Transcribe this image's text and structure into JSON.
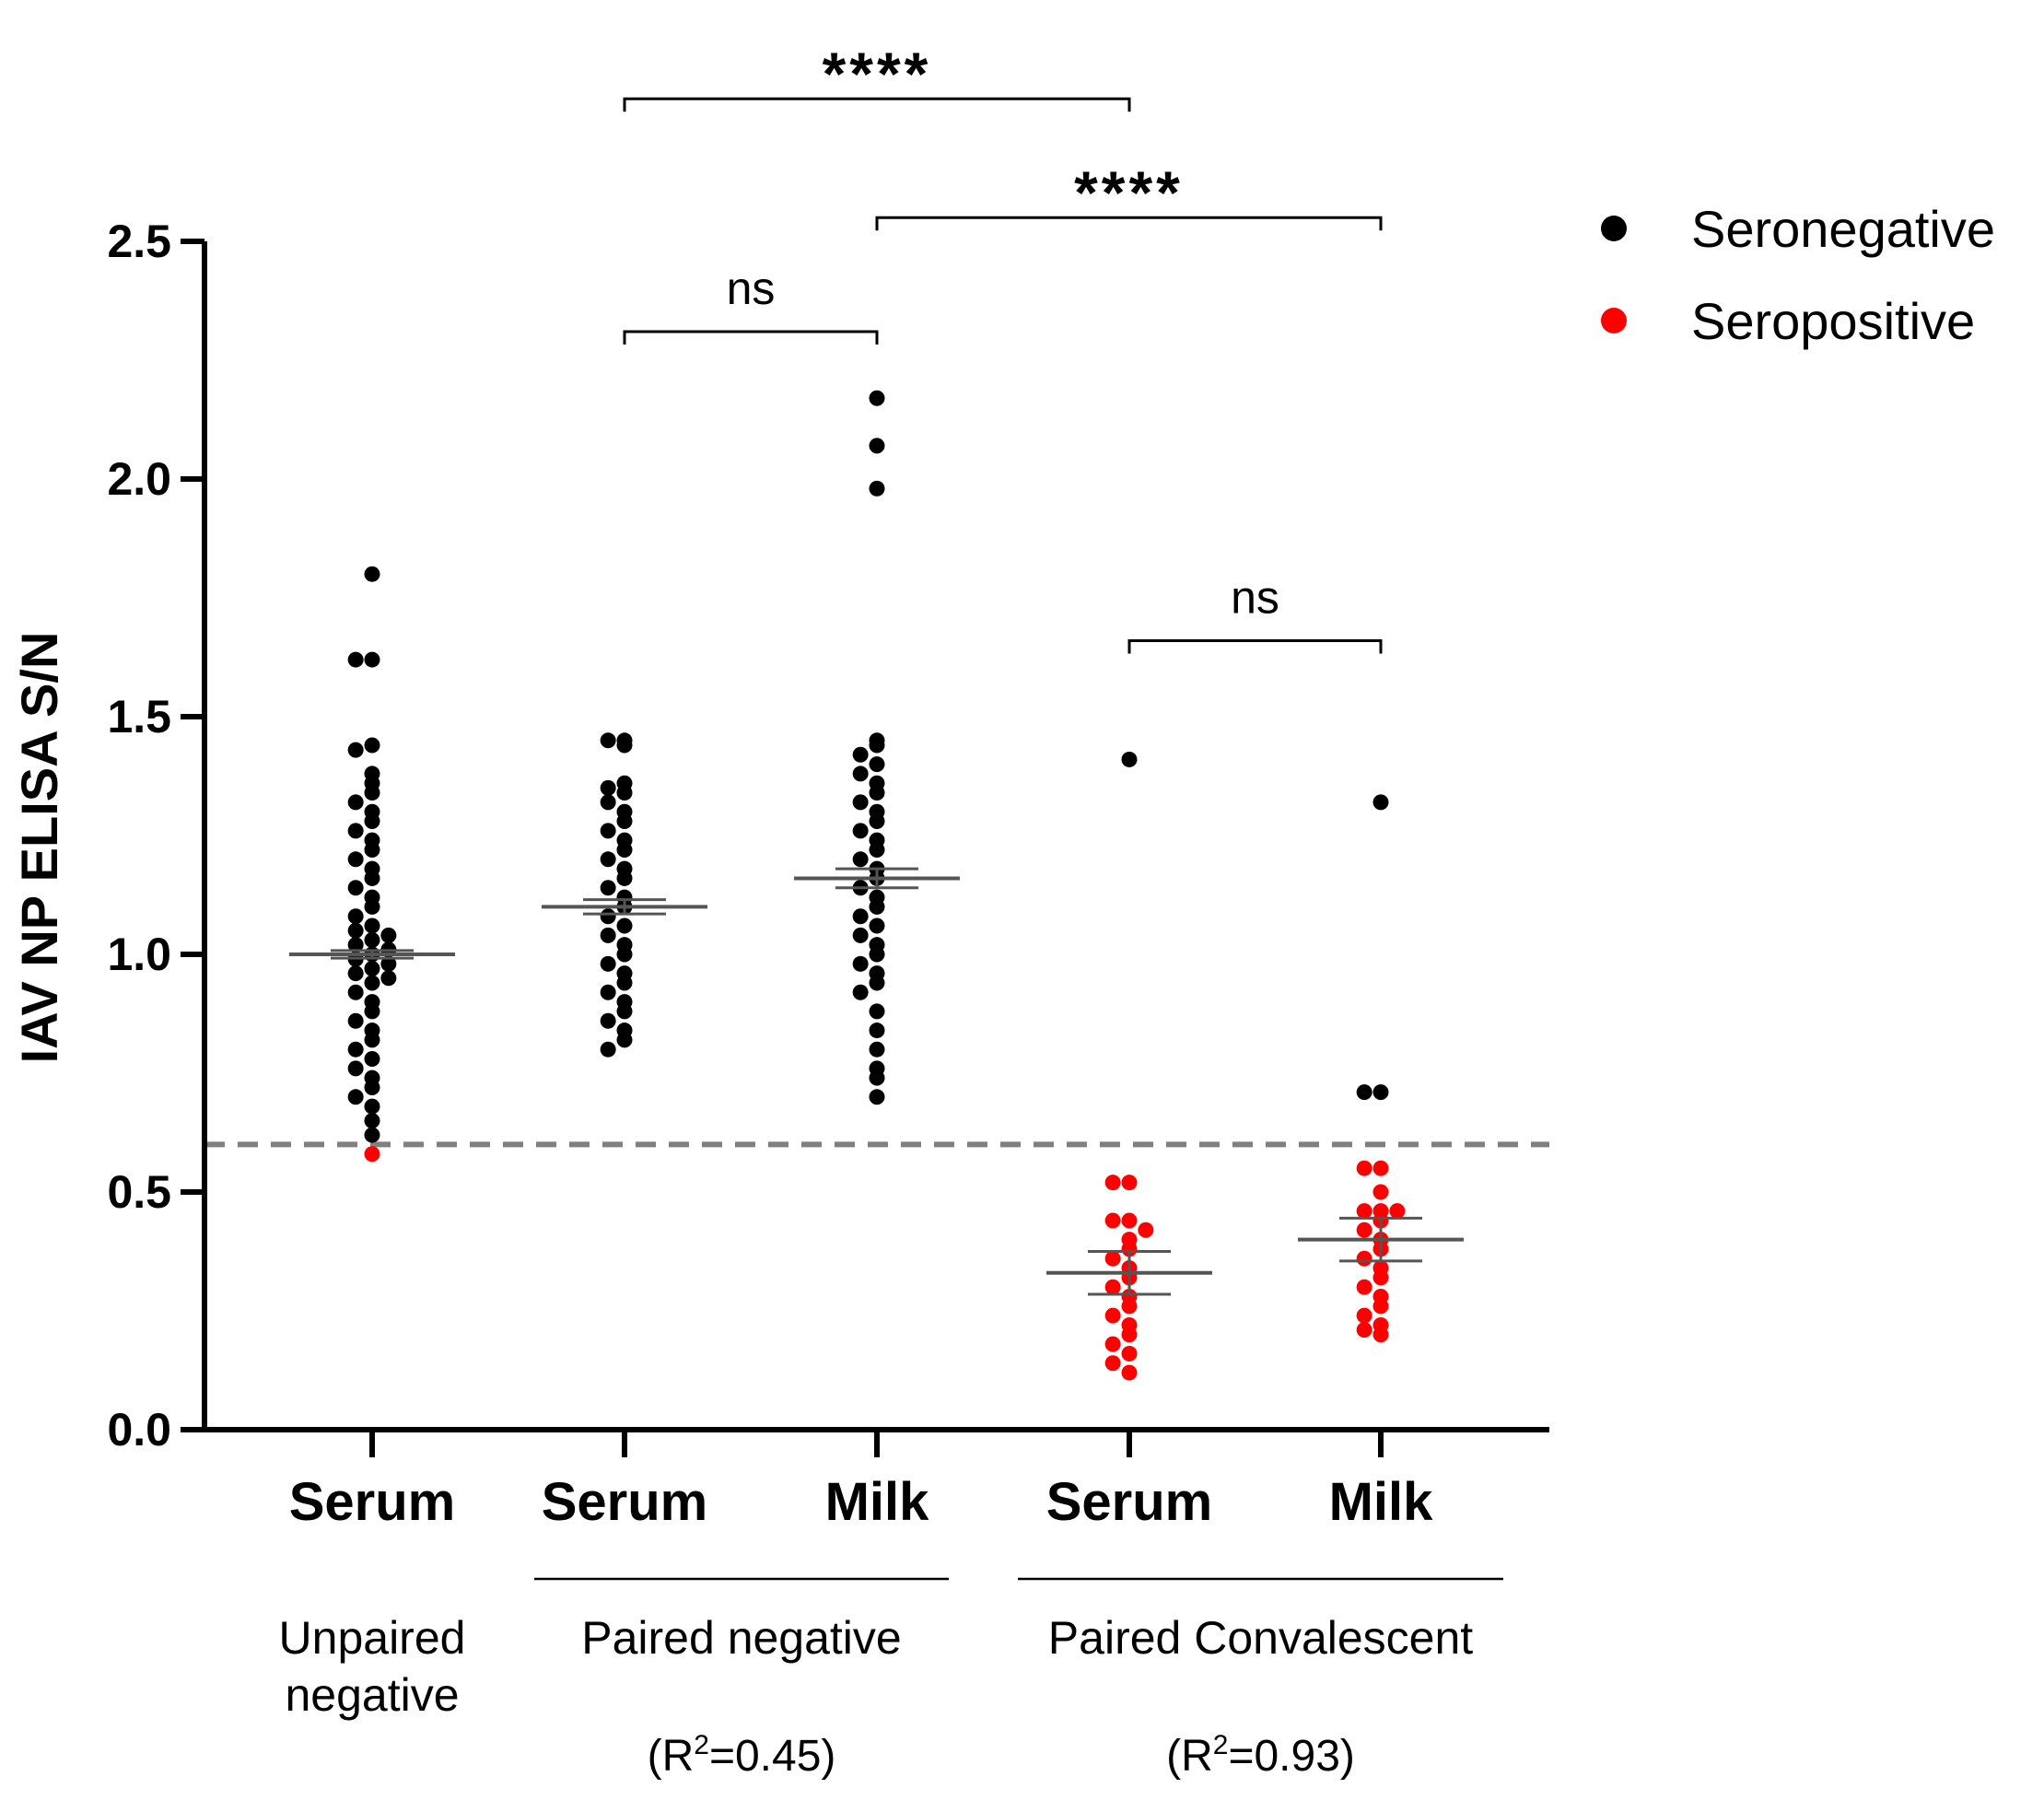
{
  "chart_data": {
    "type": "scatter",
    "title": "",
    "ylabel": "IAV NP ELISA S/N",
    "xlabel": "",
    "ylim": [
      0.0,
      2.5
    ],
    "yticks": [
      "0.0",
      "0.5",
      "1.0",
      "1.5",
      "2.0",
      "2.5"
    ],
    "cutoff": 0.6,
    "colors": {
      "seronegative": "#000000",
      "seropositive": "#ff0000",
      "cutoff_line": "#808080",
      "mean_line": "#555555"
    },
    "legend": [
      {
        "key": "seronegative",
        "label": "Seronegative"
      },
      {
        "key": "seropositive",
        "label": "Seropositive"
      }
    ],
    "categories": [
      {
        "label": "Serum",
        "group": "unpaired",
        "mean": 1.0,
        "sem": 0.008,
        "seronegative_values": [
          1.8,
          1.62,
          1.62,
          1.44,
          1.43,
          1.38,
          1.36,
          1.34,
          1.32,
          1.3,
          1.28,
          1.26,
          1.24,
          1.22,
          1.2,
          1.18,
          1.16,
          1.14,
          1.12,
          1.1,
          1.08,
          1.06,
          1.05,
          1.04,
          1.03,
          1.02,
          1.01,
          1.0,
          0.99,
          0.98,
          0.97,
          0.96,
          0.95,
          0.94,
          0.92,
          0.9,
          0.88,
          0.86,
          0.84,
          0.82,
          0.8,
          0.78,
          0.76,
          0.74,
          0.72,
          0.7,
          0.68,
          0.65,
          0.62
        ],
        "seropositive_values": [
          0.58
        ]
      },
      {
        "label": "Serum",
        "group": "paired_negative",
        "mean": 1.1,
        "sem": 0.015,
        "seronegative_values": [
          1.45,
          1.45,
          1.44,
          1.36,
          1.35,
          1.34,
          1.32,
          1.3,
          1.28,
          1.26,
          1.24,
          1.22,
          1.2,
          1.18,
          1.16,
          1.14,
          1.12,
          1.1,
          1.08,
          1.06,
          1.04,
          1.02,
          1.0,
          0.98,
          0.96,
          0.94,
          0.92,
          0.9,
          0.88,
          0.86,
          0.84,
          0.82,
          0.8
        ],
        "seropositive_values": []
      },
      {
        "label": "Milk",
        "group": "paired_negative",
        "mean": 1.16,
        "sem": 0.02,
        "seronegative_values": [
          2.17,
          2.07,
          1.98,
          1.45,
          1.44,
          1.42,
          1.4,
          1.38,
          1.36,
          1.34,
          1.32,
          1.3,
          1.28,
          1.26,
          1.24,
          1.22,
          1.2,
          1.18,
          1.16,
          1.14,
          1.12,
          1.1,
          1.08,
          1.06,
          1.04,
          1.02,
          1.0,
          0.98,
          0.96,
          0.94,
          0.92,
          0.88,
          0.84,
          0.8,
          0.76,
          0.74,
          0.7
        ],
        "seropositive_values": []
      },
      {
        "label": "Serum",
        "group": "paired_convalescent",
        "mean": 0.33,
        "sem": 0.045,
        "seronegative_values": [
          1.41
        ],
        "seropositive_values": [
          0.52,
          0.52,
          0.44,
          0.44,
          0.42,
          0.4,
          0.38,
          0.36,
          0.34,
          0.32,
          0.3,
          0.28,
          0.26,
          0.24,
          0.22,
          0.2,
          0.18,
          0.16,
          0.14,
          0.12
        ]
      },
      {
        "label": "Milk",
        "group": "paired_convalescent",
        "mean": 0.4,
        "sem": 0.045,
        "seronegative_values": [
          1.32,
          0.71,
          0.71
        ],
        "seropositive_values": [
          0.55,
          0.55,
          0.5,
          0.46,
          0.46,
          0.46,
          0.44,
          0.42,
          0.4,
          0.38,
          0.36,
          0.34,
          0.32,
          0.3,
          0.28,
          0.26,
          0.24,
          0.22,
          0.21,
          0.2
        ]
      }
    ],
    "groups": [
      {
        "lines": [
          "Unpaired",
          "negative"
        ],
        "r2": ""
      },
      {
        "lines": [
          "Paired negative"
        ],
        "r2": "0.45"
      },
      {
        "lines": [
          "Paired Convalescent"
        ],
        "r2": "0.93"
      }
    ],
    "r2_prefix": "(R",
    "r2_sup": "2",
    "r2_eq": "=",
    "r2_suffix": ")",
    "significance": [
      {
        "from": 1,
        "to": 3,
        "label": "****",
        "y": 2.8
      },
      {
        "from": 2,
        "to": 4,
        "label": "****",
        "y": 2.55
      },
      {
        "from": 1,
        "to": 2,
        "label": "ns",
        "y": 2.31
      },
      {
        "from": 3,
        "to": 4,
        "label": "ns",
        "y": 1.66
      }
    ]
  }
}
